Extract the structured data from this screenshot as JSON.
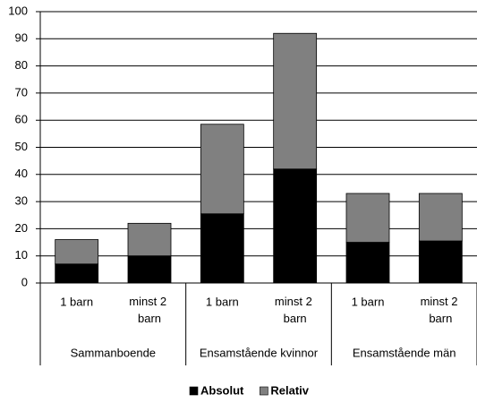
{
  "chart_data": {
    "type": "stacked_bar",
    "categories": [
      "1 barn",
      "minst 2 barn",
      "1 barn",
      "minst 2 barn",
      "1 barn",
      "minst 2 barn"
    ],
    "groups": [
      "Sammanboende",
      "Ensamstående kvinnor",
      "Ensamstående män"
    ],
    "series": [
      {
        "name": "Absolut",
        "color": "#000000",
        "values": [
          7,
          10,
          25.5,
          42,
          15,
          15.5
        ]
      },
      {
        "name": "Relativ",
        "color": "#808080",
        "values": [
          9,
          12,
          33,
          50,
          18,
          17.5
        ]
      }
    ],
    "ylim": [
      0,
      100
    ],
    "yticks": [
      0,
      10,
      20,
      30,
      40,
      50,
      60,
      70,
      80,
      90,
      100
    ],
    "grid": true,
    "legend": "bottom"
  }
}
